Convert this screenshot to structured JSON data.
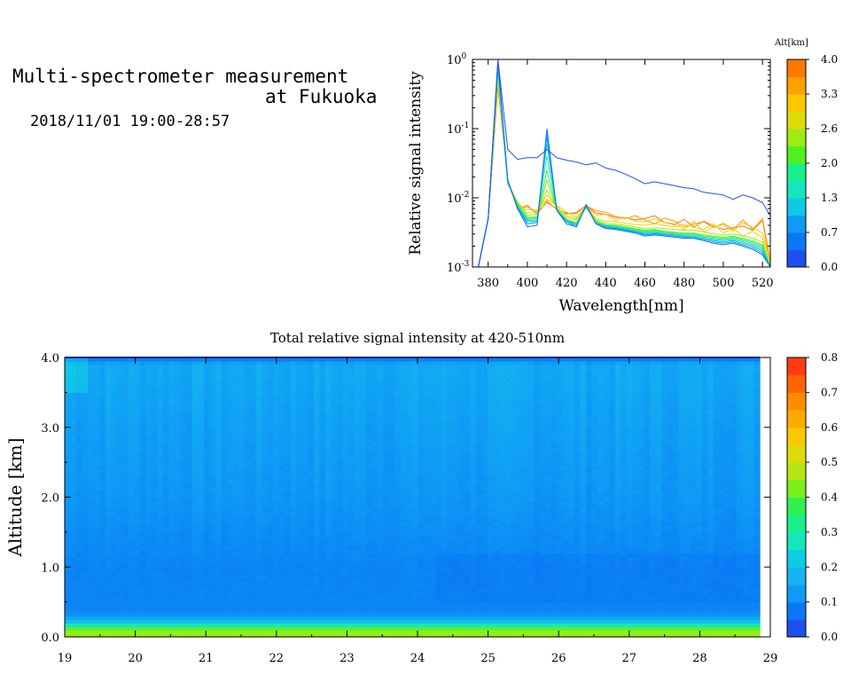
{
  "header": {
    "title_line1": "Multi-spectrometer measurement",
    "title_line2": "at Fukuoka",
    "datetime": "2018/11/01 19:00-28:57"
  },
  "colors": {
    "altitude_scale": [
      "#1e50f0",
      "#0a78f5",
      "#0f9bf5",
      "#0fc8e6",
      "#14e6be",
      "#19f08c",
      "#50f01e",
      "#a0eb14",
      "#dcdc0a",
      "#ffc800",
      "#ffa000",
      "#ff7800"
    ],
    "intensity_scale": [
      "#1e50f0",
      "#0a78f5",
      "#0f9bf5",
      "#14b4f0",
      "#0fcde1",
      "#14e6be",
      "#19f08c",
      "#32f050",
      "#78f01e",
      "#b4e614",
      "#dcdc0a",
      "#fac800",
      "#ffaa00",
      "#ff8c00",
      "#ff6400",
      "#ff3c14"
    ]
  },
  "chart_data": [
    {
      "type": "line",
      "title": "",
      "xlabel": "Wavelength[nm]",
      "ylabel": "Relative signal intensity",
      "xlim": [
        372,
        524
      ],
      "ylim": [
        0.001,
        1
      ],
      "yscale": "log",
      "x_ticks": [
        380,
        400,
        420,
        440,
        460,
        480,
        500,
        520
      ],
      "y_ticks": [
        {
          "value": 1,
          "base": "10",
          "exp": "0"
        },
        {
          "value": 0.1,
          "base": "10",
          "exp": "-1"
        },
        {
          "value": 0.01,
          "base": "10",
          "exp": "-2"
        },
        {
          "value": 0.001,
          "base": "10",
          "exp": "-3"
        }
      ],
      "colorbar": {
        "label": "Alt[km]",
        "ticks": [
          "4.0",
          "3.3",
          "2.6",
          "2.0",
          "1.3",
          "0.7",
          "0.0"
        ]
      },
      "x": [
        375,
        380,
        385,
        390,
        395,
        400,
        405,
        410,
        415,
        420,
        425,
        430,
        435,
        440,
        445,
        450,
        455,
        460,
        465,
        470,
        475,
        480,
        485,
        490,
        495,
        500,
        505,
        510,
        515,
        520,
        524
      ],
      "series": [
        {
          "altitude_km": 0.0,
          "values": [
            0.001,
            0.005,
            1.0,
            0.05,
            0.036,
            0.038,
            0.038,
            0.05,
            0.038,
            0.035,
            0.033,
            0.03,
            0.032,
            0.027,
            0.025,
            0.022,
            0.019,
            0.016,
            0.017,
            0.016,
            0.015,
            0.014,
            0.0135,
            0.012,
            0.0115,
            0.011,
            0.0095,
            0.011,
            0.01,
            0.0085,
            0.0055
          ]
        },
        {
          "altitude_km": 0.3,
          "values": [
            0.001,
            0.005,
            0.95,
            0.018,
            0.007,
            0.0038,
            0.004,
            0.1,
            0.0066,
            0.0042,
            0.0038,
            0.008,
            0.0042,
            0.0036,
            0.0035,
            0.0033,
            0.0031,
            0.0028,
            0.0029,
            0.0028,
            0.0027,
            0.0026,
            0.0026,
            0.0024,
            0.0022,
            0.0021,
            0.0022,
            0.002,
            0.0018,
            0.0015,
            0.001
          ]
        },
        {
          "altitude_km": 0.7,
          "values": [
            0.001,
            0.005,
            0.9,
            0.018,
            0.0072,
            0.0042,
            0.0044,
            0.085,
            0.0066,
            0.0045,
            0.0038,
            0.0078,
            0.0042,
            0.0037,
            0.0036,
            0.0034,
            0.0032,
            0.0029,
            0.003,
            0.0029,
            0.0028,
            0.0027,
            0.0026,
            0.0025,
            0.0023,
            0.0022,
            0.0023,
            0.0021,
            0.0019,
            0.0016,
            0.001
          ]
        },
        {
          "altitude_km": 1.0,
          "values": [
            0.001,
            0.005,
            0.85,
            0.017,
            0.0074,
            0.0045,
            0.0046,
            0.075,
            0.0065,
            0.0046,
            0.004,
            0.0076,
            0.0043,
            0.0038,
            0.0037,
            0.0035,
            0.0033,
            0.003,
            0.0031,
            0.003,
            0.0029,
            0.0028,
            0.0027,
            0.0026,
            0.0024,
            0.0023,
            0.0024,
            0.0022,
            0.002,
            0.0017,
            0.001
          ]
        },
        {
          "altitude_km": 1.3,
          "values": [
            0.001,
            0.005,
            0.8,
            0.017,
            0.0076,
            0.0047,
            0.0048,
            0.06,
            0.0066,
            0.0046,
            0.0041,
            0.0075,
            0.0043,
            0.0039,
            0.0037,
            0.0035,
            0.0033,
            0.0031,
            0.0032,
            0.003,
            0.0029,
            0.0028,
            0.0028,
            0.0026,
            0.0025,
            0.0024,
            0.0025,
            0.0023,
            0.0021,
            0.0018,
            0.001
          ]
        },
        {
          "altitude_km": 1.7,
          "values": [
            0.001,
            0.005,
            0.75,
            0.017,
            0.0078,
            0.0049,
            0.005,
            0.04,
            0.0068,
            0.0047,
            0.0042,
            0.0074,
            0.0044,
            0.0039,
            0.0038,
            0.0036,
            0.0034,
            0.0032,
            0.0033,
            0.0031,
            0.003,
            0.0029,
            0.0029,
            0.0027,
            0.0026,
            0.0025,
            0.0026,
            0.0024,
            0.0022,
            0.0019,
            0.001
          ]
        },
        {
          "altitude_km": 2.0,
          "values": [
            0.001,
            0.005,
            0.7,
            0.016,
            0.008,
            0.005,
            0.0052,
            0.025,
            0.0068,
            0.0048,
            0.0043,
            0.0073,
            0.0045,
            0.004,
            0.0039,
            0.0037,
            0.0035,
            0.0033,
            0.0034,
            0.0032,
            0.0031,
            0.003,
            0.003,
            0.0028,
            0.0027,
            0.0026,
            0.0027,
            0.0025,
            0.0023,
            0.002,
            0.001
          ]
        },
        {
          "altitude_km": 2.3,
          "values": [
            0.001,
            0.005,
            0.65,
            0.016,
            0.0082,
            0.0052,
            0.0054,
            0.018,
            0.0069,
            0.0049,
            0.0044,
            0.0072,
            0.0046,
            0.0041,
            0.004,
            0.0038,
            0.0036,
            0.0034,
            0.0035,
            0.0033,
            0.0032,
            0.0031,
            0.0031,
            0.0029,
            0.0028,
            0.0027,
            0.0028,
            0.0026,
            0.0024,
            0.0021,
            0.001
          ]
        },
        {
          "altitude_km": 2.6,
          "values": [
            0.001,
            0.005,
            0.6,
            0.016,
            0.0086,
            0.0056,
            0.0058,
            0.013,
            0.0072,
            0.0052,
            0.0048,
            0.0074,
            0.0048,
            0.0043,
            0.0042,
            0.004,
            0.0038,
            0.0036,
            0.0037,
            0.0036,
            0.0035,
            0.0034,
            0.0034,
            0.0032,
            0.003,
            0.0029,
            0.003,
            0.0028,
            0.0026,
            0.0023,
            0.001
          ]
        },
        {
          "altitude_km": 3.0,
          "values": [
            0.001,
            0.005,
            0.55,
            0.016,
            0.0088,
            0.006,
            0.0062,
            0.011,
            0.0075,
            0.0055,
            0.005,
            0.0075,
            0.005,
            0.0046,
            0.0045,
            0.0043,
            0.0041,
            0.004,
            0.0042,
            0.004,
            0.0038,
            0.0041,
            0.0037,
            0.0035,
            0.0042,
            0.0031,
            0.0036,
            0.0028,
            0.0033,
            0.0026,
            0.0011
          ]
        },
        {
          "altitude_km": 3.3,
          "values": [
            0.001,
            0.005,
            0.5,
            0.017,
            0.0075,
            0.0068,
            0.0066,
            0.0095,
            0.0078,
            0.0062,
            0.0052,
            0.0076,
            0.0056,
            0.0058,
            0.0047,
            0.0052,
            0.0046,
            0.0045,
            0.005,
            0.0044,
            0.0042,
            0.0035,
            0.0046,
            0.0032,
            0.0038,
            0.0041,
            0.0033,
            0.0044,
            0.0037,
            0.0031,
            0.0012
          ]
        },
        {
          "altitude_km": 3.7,
          "values": [
            0.001,
            0.005,
            0.45,
            0.017,
            0.0072,
            0.0074,
            0.0063,
            0.0085,
            0.007,
            0.0058,
            0.0062,
            0.0077,
            0.0065,
            0.0062,
            0.0054,
            0.005,
            0.0055,
            0.0048,
            0.0042,
            0.0051,
            0.0046,
            0.0038,
            0.0042,
            0.0045,
            0.0037,
            0.0043,
            0.0035,
            0.0048,
            0.0035,
            0.005,
            0.0012
          ]
        },
        {
          "altitude_km": 4.0,
          "values": [
            0.001,
            0.005,
            0.4,
            0.018,
            0.0068,
            0.0078,
            0.0058,
            0.009,
            0.0068,
            0.006,
            0.0059,
            0.0078,
            0.006,
            0.0058,
            0.0052,
            0.0052,
            0.0048,
            0.005,
            0.0055,
            0.0044,
            0.0041,
            0.0049,
            0.0038,
            0.0046,
            0.0039,
            0.0035,
            0.0037,
            0.0039,
            0.0034,
            0.0047,
            0.0011
          ]
        }
      ]
    },
    {
      "type": "heatmap",
      "title": "Total relative signal intensity at 420-510nm",
      "xlabel": "",
      "ylabel": "Altitude [km]",
      "xlim": [
        19,
        29
      ],
      "ylim": [
        0,
        4.0
      ],
      "x_ticks": [
        "19",
        "20",
        "21",
        "22",
        "23",
        "24",
        "25",
        "26",
        "27",
        "28",
        "29"
      ],
      "y_ticks": [
        "0.0",
        "1.0",
        "2.0",
        "3.0",
        "4.0"
      ],
      "data_extent_x": [
        19,
        28.85
      ],
      "colorbar": {
        "ticks": [
          "0.0",
          "0.1",
          "0.2",
          "0.3",
          "0.4",
          "0.5",
          "0.6",
          "0.7",
          "0.8"
        ],
        "range": [
          0,
          0.8
        ]
      },
      "altitude_profile": [
        {
          "alt": 0.1,
          "value": 0.45
        },
        {
          "alt": 0.15,
          "value": 0.35
        },
        {
          "alt": 0.2,
          "value": 0.2
        },
        {
          "alt": 0.25,
          "value": 0.15
        },
        {
          "alt": 0.3,
          "value": 0.11
        },
        {
          "alt": 0.35,
          "value": 0.08
        },
        {
          "alt": 0.4,
          "value": 0.075
        },
        {
          "alt": 1.0,
          "value": 0.07
        },
        {
          "alt": 2.0,
          "value": 0.09
        },
        {
          "alt": 3.0,
          "value": 0.1
        },
        {
          "alt": 3.9,
          "value": 0.12
        },
        {
          "alt": 4.0,
          "value": 0.05
        }
      ]
    }
  ]
}
